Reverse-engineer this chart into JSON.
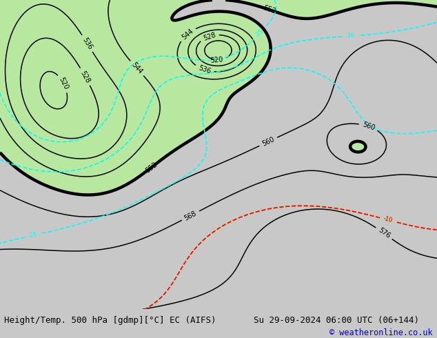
{
  "title_left": "Height/Temp. 500 hPa [gdmp][°C] EC (AIFS)",
  "title_right": "Su 29-09-2024 06:00 UTC (06+144)",
  "copyright": "© weatheronline.co.uk",
  "bg_color": "#c8c8c8",
  "green_color": "#b8e8a0",
  "footer_bg": "#e0e0e0",
  "footer_text_color": "#000000",
  "copyright_color": "#0000cc",
  "font_size_footer": 9,
  "figsize": [
    6.34,
    4.9
  ],
  "dpi": 100
}
